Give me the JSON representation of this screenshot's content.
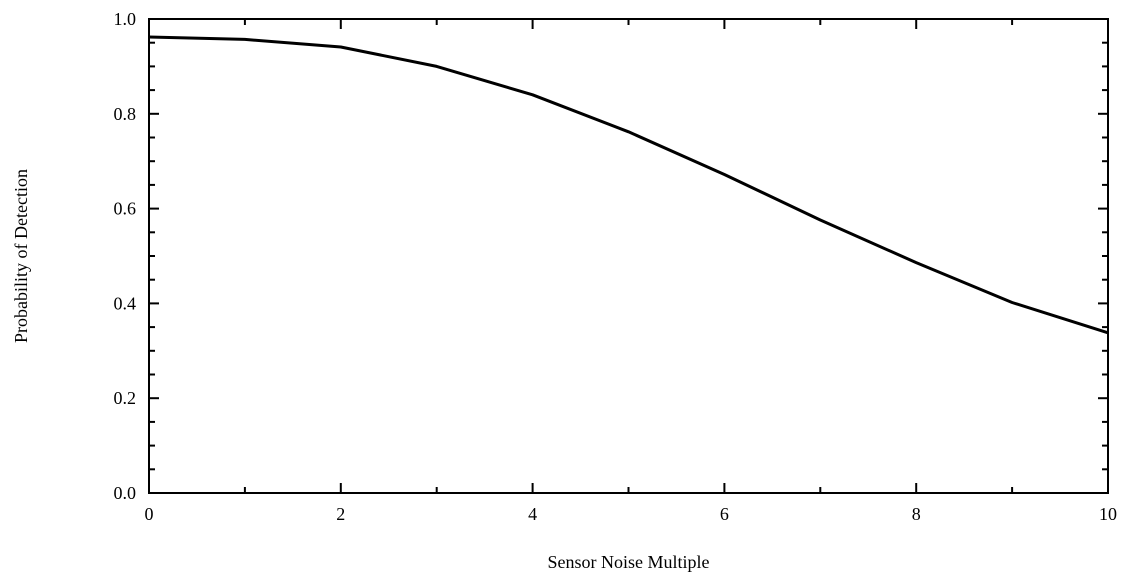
{
  "chart_data": {
    "type": "line",
    "title": "",
    "xlabel": "Sensor Noise Multiple",
    "ylabel": "Probability of Detection",
    "xlim": [
      0,
      10
    ],
    "ylim": [
      0.0,
      1.0
    ],
    "x_ticks": [
      0,
      2,
      4,
      6,
      8,
      10
    ],
    "x_tick_labels": [
      "0",
      "2",
      "4",
      "6",
      "8",
      "10"
    ],
    "y_ticks": [
      0.0,
      0.2,
      0.4,
      0.6,
      0.8,
      1.0
    ],
    "y_tick_labels": [
      "0.0",
      "0.2",
      "0.4",
      "0.6",
      "0.8",
      "1.0"
    ],
    "grid": false,
    "legend": "none",
    "series": [
      {
        "color": "#000000",
        "x": [
          0,
          1,
          2,
          3,
          4,
          5,
          6,
          7,
          8,
          9,
          10
        ],
        "y": [
          0.962,
          0.957,
          0.941,
          0.9,
          0.84,
          0.762,
          0.672,
          0.576,
          0.486,
          0.402,
          0.338
        ]
      }
    ]
  }
}
